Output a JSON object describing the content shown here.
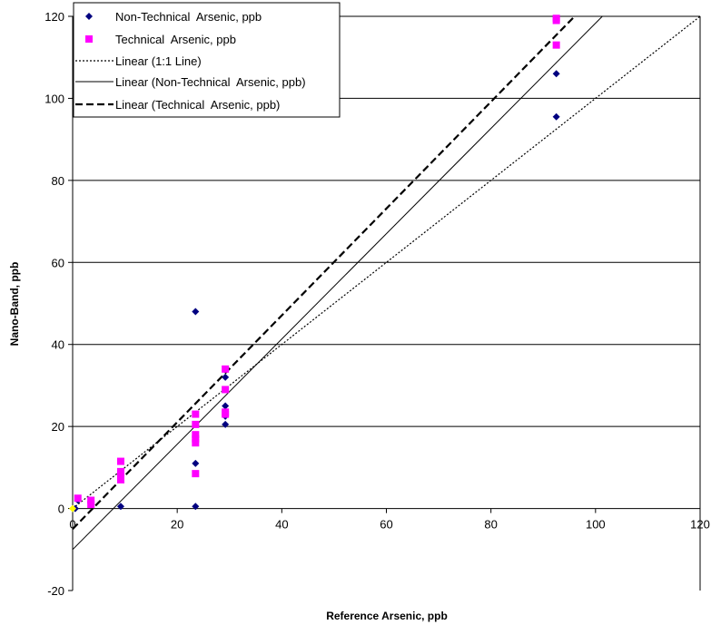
{
  "chart_data": {
    "type": "scatter",
    "xlabel": "Reference Arsenic, ppb",
    "ylabel": "Nano-Band, ppb",
    "xlim": [
      0,
      120
    ],
    "ylim": [
      -20,
      120
    ],
    "x_ticks": [
      0,
      20,
      40,
      60,
      80,
      100,
      120
    ],
    "y_ticks": [
      -20,
      0,
      20,
      40,
      60,
      80,
      100,
      120
    ],
    "grid": "horizontal",
    "legend_position": "top-left",
    "series": [
      {
        "name": "Non-Technical  Arsenic, ppb",
        "kind": "scatter",
        "marker": "diamond",
        "color": "#000080",
        "points": [
          [
            0.5,
            0
          ],
          [
            1,
            2
          ],
          [
            3.5,
            1.5
          ],
          [
            9.2,
            0.5
          ],
          [
            23.5,
            48
          ],
          [
            23.5,
            11
          ],
          [
            23.5,
            0.5
          ],
          [
            29.2,
            32
          ],
          [
            29.2,
            25
          ],
          [
            29.2,
            22.5
          ],
          [
            29.2,
            20.5
          ],
          [
            92.5,
            106
          ],
          [
            92.5,
            95.5
          ],
          [
            92.5,
            119
          ]
        ]
      },
      {
        "name": "Technical  Arsenic, ppb",
        "kind": "scatter",
        "marker": "square",
        "color": "#ff00ff",
        "points": [
          [
            1,
            2.5
          ],
          [
            3.5,
            2
          ],
          [
            3.5,
            1
          ],
          [
            9.2,
            11.5
          ],
          [
            9.2,
            9
          ],
          [
            9.2,
            8
          ],
          [
            9.2,
            7
          ],
          [
            23.5,
            23
          ],
          [
            23.5,
            20.5
          ],
          [
            23.5,
            18
          ],
          [
            23.5,
            17
          ],
          [
            23.5,
            16
          ],
          [
            23.5,
            8.5
          ],
          [
            29.2,
            34
          ],
          [
            29.2,
            29
          ],
          [
            29.2,
            23.5
          ],
          [
            29.2,
            23
          ],
          [
            92.5,
            119.5
          ],
          [
            92.5,
            119
          ],
          [
            92.5,
            113
          ]
        ]
      },
      {
        "name": "Linear (1:1 Line)",
        "kind": "line",
        "style": "dotted",
        "color": "#000000",
        "points": [
          [
            0,
            0
          ],
          [
            120,
            120
          ]
        ]
      },
      {
        "name": "Linear (Non-Technical  Arsenic, ppb)",
        "kind": "line",
        "style": "solid",
        "color": "#000000",
        "points": [
          [
            0,
            -10
          ],
          [
            101.3,
            120
          ]
        ]
      },
      {
        "name": "Linear (Technical  Arsenic, ppb)",
        "kind": "line",
        "style": "dashed",
        "color": "#000000",
        "points": [
          [
            0,
            -5
          ],
          [
            96,
            120
          ]
        ]
      }
    ],
    "extra_points": [
      {
        "x": 0,
        "y": 0,
        "color": "#ffff00",
        "marker": "diamond"
      }
    ]
  }
}
